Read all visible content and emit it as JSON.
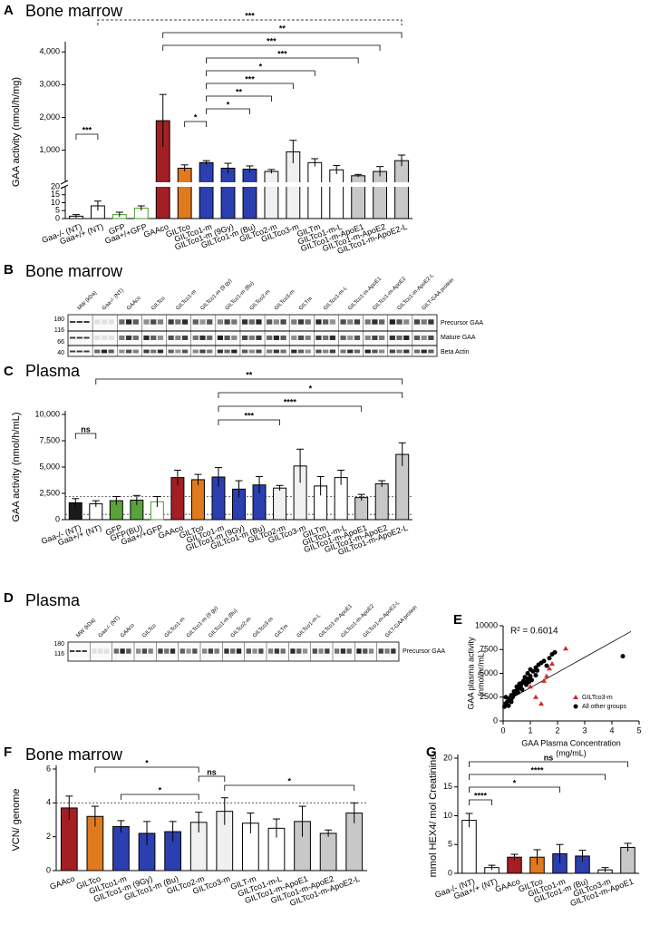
{
  "chart_data": [
    {
      "panel": "A",
      "type": "bar",
      "title": "Bone marrow",
      "y_label": "GAA activity (nmol/h/mg)",
      "categories": [
        "Gaa-/- (NT)",
        "Gaa+/+ (NT)",
        "GFP",
        "Gaa+/+GFP",
        "GAAco",
        "GILTco",
        "GILTco1-m",
        "GILTco1-m (9Gy)",
        "GILTco1-m (Bu)",
        "GILTco2-m",
        "GILTco3-m",
        "GILTm",
        "GILTco1-m-L",
        "GILTco1-m-ApoE1",
        "GILTco1-m-ApoE2",
        "GILTco1-m-ApoE2-L"
      ],
      "values": [
        1.5,
        8,
        2.5,
        6.5,
        1900,
        450,
        620,
        450,
        420,
        350,
        950,
        620,
        400,
        220,
        350,
        680
      ],
      "errors": [
        1,
        3,
        1.5,
        1.5,
        800,
        100,
        60,
        150,
        100,
        60,
        350,
        120,
        130,
        40,
        150,
        170
      ],
      "colors": [
        "#ffffff",
        "#ffffff",
        "#ffffff",
        "#ffffff",
        "#a31f23",
        "#e07a1f",
        "#2b3fb0",
        "#2b3fb0",
        "#2b3fb0",
        "#f0f0f0",
        "#f0f0f0",
        "#ffffff",
        "#ffffff",
        "#c8c8c8",
        "#c8c8c8",
        "#c8c8c8"
      ],
      "edgecolors": [
        "#000000",
        "#000000",
        "#4a9a2a",
        "#4a9a2a",
        "#000000",
        "#000000",
        "#000000",
        "#000000",
        "#000000",
        "#000000",
        "#000000",
        "#000000",
        "#000000",
        "#000000",
        "#000000",
        "#000000"
      ],
      "ylim": [
        0,
        4200
      ],
      "axis_break": 20,
      "yticks": [
        0,
        5,
        10,
        15,
        20,
        {
          "value": 1000,
          "label": "1,000"
        },
        {
          "value": 2000,
          "label": "2,000"
        },
        {
          "value": 3000,
          "label": "3,000"
        },
        {
          "value": 4000,
          "label": "4,000"
        }
      ],
      "annotations": [
        {
          "text": "***",
          "from": "Gaa+/+ (NT)",
          "to": "GILTco1-m-ApoE2-L",
          "dashed": true
        },
        {
          "text": "**",
          "from": "GAAco",
          "to": "GILTco1-m-ApoE2-L"
        },
        {
          "text": "***",
          "from": "GAAco",
          "to": "GILTco1-m-ApoE2"
        },
        {
          "text": "***",
          "from": "GILTco1-m",
          "to": "GILTco1-m-ApoE1"
        },
        {
          "text": "*",
          "from": "GILTco1-m",
          "to": "GILTm"
        },
        {
          "text": "***",
          "from": "GILTco1-m",
          "to": "GILTco3-m"
        },
        {
          "text": "**",
          "from": "GILTco1-m",
          "to": "GILTco2-m"
        },
        {
          "text": "*",
          "from": "GILTco1-m",
          "to": "GILTco1-m (Bu)"
        },
        {
          "text": "*",
          "from": "GILTco",
          "to": "GILTco1-m"
        },
        {
          "text": "***",
          "from": "Gaa-/- (NT)",
          "to": "Gaa+/+ (NT)"
        }
      ]
    },
    {
      "panel": "C",
      "type": "bar",
      "title": "Plasma",
      "y_label": "GAA activity (nmol/h/mL)",
      "categories": [
        "Gaa-/- (NT)",
        "Gaa+/+ (NT)",
        "GFP",
        "GFP(BU)",
        "Gaa+/+GFP",
        "GAAco",
        "GILTco",
        "GILTco1-m",
        "GILTco1-m (9Gy)",
        "GILTco1-m (Bu)",
        "GILTco2-m",
        "GILTco3-m",
        "GILTm",
        "GILTco1-m-L",
        "GILTco1-m-ApoE1",
        "GILTco1-m-ApoE2",
        "GILTco1-m-ApoE2-L"
      ],
      "values": [
        1600,
        1500,
        1800,
        1850,
        1700,
        4000,
        3800,
        4050,
        2900,
        3300,
        3000,
        5100,
        3200,
        4000,
        2100,
        3400,
        6200
      ],
      "errors": [
        400,
        300,
        400,
        450,
        500,
        700,
        500,
        900,
        800,
        800,
        250,
        1600,
        900,
        700,
        300,
        300,
        1100
      ],
      "colors": [
        "#1a1a1a",
        "#ffffff",
        "#5aa33a",
        "#5aa33a",
        "#ffffff",
        "#a31f23",
        "#e07a1f",
        "#2b3fb0",
        "#2b3fb0",
        "#2b3fb0",
        "#f0f0f0",
        "#f0f0f0",
        "#ffffff",
        "#ffffff",
        "#c8c8c8",
        "#c8c8c8",
        "#c8c8c8"
      ],
      "edgecolors": [
        "#000000",
        "#000000",
        "#000000",
        "#000000",
        "#4a9a2a",
        "#000000",
        "#000000",
        "#000000",
        "#000000",
        "#000000",
        "#000000",
        "#000000",
        "#000000",
        "#000000",
        "#000000",
        "#000000",
        "#000000"
      ],
      "ylim": [
        0,
        10000
      ],
      "yticks": [
        0,
        {
          "value": 2500,
          "label": "2,500"
        },
        {
          "value": 5000,
          "label": "5,000"
        },
        {
          "value": 7500,
          "label": "7,500"
        },
        {
          "value": 10000,
          "label": "10,000"
        }
      ],
      "hlines": [
        2200,
        500
      ],
      "annotations": [
        {
          "text": "**",
          "from": "Gaa+/+ (NT)",
          "to": "GILTco1-m-ApoE2-L"
        },
        {
          "text": "*",
          "from": "GILTco1-m",
          "to": "GILTco1-m-ApoE2-L"
        },
        {
          "text": "****",
          "from": "GILTco1-m",
          "to": "GILTco1-m-ApoE1"
        },
        {
          "text": "***",
          "from": "GILTco1-m",
          "to": "GILTco2-m"
        },
        {
          "text": "ns",
          "from": "Gaa-/- (NT)",
          "to": "Gaa+/+ (NT)"
        }
      ]
    },
    {
      "panel": "E",
      "type": "scatter",
      "x_label": [
        "GAA Plasma Concentration",
        "(mg/mL)"
      ],
      "y_label": [
        "GAA plasma activity",
        "(nmol/hr/mL)"
      ],
      "annotation": "R² = 0.6014",
      "series": [
        {
          "name": "GILTco3-m",
          "color": "#d62728",
          "marker": "triangle",
          "x": [
            1.2,
            1.4,
            1.5,
            1.6,
            1.7,
            2.3,
            1.8,
            1.0
          ],
          "values": [
            2500,
            1800,
            4200,
            4700,
            5500,
            7600,
            6000,
            3600
          ]
        },
        {
          "name": "All other groups",
          "color": "#000000",
          "marker": "circle",
          "x": [
            0.1,
            0.15,
            0.2,
            0.2,
            0.25,
            0.3,
            0.3,
            0.35,
            0.4,
            0.4,
            0.45,
            0.5,
            0.5,
            0.55,
            0.6,
            0.6,
            0.65,
            0.7,
            0.7,
            0.75,
            0.8,
            0.8,
            0.85,
            0.9,
            0.9,
            1.0,
            1.0,
            1.05,
            1.1,
            1.2,
            1.2,
            1.3,
            1.4,
            1.5,
            1.6,
            1.7,
            1.8,
            1.9,
            4.4,
            0.05,
            0.1,
            0.3,
            0.55,
            0.95,
            1.25
          ],
          "values": [
            1800,
            2000,
            2200,
            1600,
            2400,
            2300,
            2700,
            2500,
            2800,
            3100,
            2900,
            3200,
            3600,
            3400,
            3500,
            3900,
            3700,
            4000,
            3300,
            4200,
            4100,
            4600,
            3800,
            4400,
            5000,
            4700,
            5400,
            4300,
            5200,
            5600,
            4800,
            5900,
            6100,
            6300,
            5800,
            6600,
            7000,
            7200,
            6800,
            1500,
            2500,
            2000,
            3000,
            4100,
            5300
          ]
        }
      ],
      "trendline": {
        "x": [
          0,
          4.7
        ],
        "y": [
          1900,
          9400
        ]
      },
      "xlim": [
        0,
        5
      ],
      "xticks": [
        0,
        1,
        2,
        3,
        4,
        5
      ],
      "ylim": [
        0,
        10000
      ],
      "yticks": [
        0,
        2500,
        5000,
        7500,
        10000
      ],
      "legend": "lower-right"
    },
    {
      "panel": "F",
      "type": "bar",
      "title": "Bone marrow",
      "y_label": "VCN/ genome",
      "categories": [
        "GAAco",
        "GILTco",
        "GILTco1-m",
        "GILTco1-m (9Gy)",
        "GILTco1-m (Bu)",
        "GILTco2-m",
        "GILTco3-m",
        "GILT-m",
        "GILTco1-m-L",
        "GILTco1-m-ApoE1",
        "GILTco1-m-ApoE2",
        "GILTco1-m-ApoE2-L"
      ],
      "values": [
        3.7,
        3.2,
        2.6,
        2.2,
        2.3,
        2.85,
        3.5,
        2.8,
        2.5,
        2.9,
        2.2,
        3.4
      ],
      "errors": [
        0.7,
        0.6,
        0.35,
        0.7,
        0.6,
        0.6,
        0.8,
        0.6,
        0.55,
        0.9,
        0.2,
        0.6
      ],
      "colors": [
        "#a31f23",
        "#e07a1f",
        "#2b3fb0",
        "#2b3fb0",
        "#2b3fb0",
        "#f0f0f0",
        "#f0f0f0",
        "#ffffff",
        "#ffffff",
        "#c8c8c8",
        "#c8c8c8",
        "#c8c8c8"
      ],
      "edgecolors": [
        "#000000",
        "#000000",
        "#000000",
        "#000000",
        "#000000",
        "#000000",
        "#000000",
        "#000000",
        "#000000",
        "#000000",
        "#000000",
        "#000000"
      ],
      "ylim": [
        0,
        6
      ],
      "yticks": [
        0,
        2,
        4,
        6
      ],
      "hlines": [
        4
      ],
      "annotations": [
        {
          "text": "*",
          "from": "GILTco",
          "to": "GILTco2-m"
        },
        {
          "text": "ns",
          "from": "GILTco2-m",
          "to": "GILTco3-m"
        },
        {
          "text": "*",
          "from": "GILTco3-m",
          "to": "GILTco1-m-ApoE2-L"
        },
        {
          "text": "*",
          "from": "GILTco1-m",
          "to": "GILTco2-m"
        }
      ]
    },
    {
      "panel": "G",
      "type": "bar",
      "y_label": "mmol HEX4/ mol Creatinine",
      "categories": [
        "Gaa-/- (NT)",
        "Gaa+/+ (NT)",
        "GAAco",
        "GILTco",
        "GILTco1-m",
        "GILTco1-m (Bu)",
        "GILTco3-m",
        "GILTco1-m-ApoE1"
      ],
      "values": [
        9.2,
        1.0,
        2.8,
        2.8,
        3.4,
        3.0,
        0.6,
        4.5
      ],
      "errors": [
        1.2,
        0.4,
        0.5,
        1.3,
        1.6,
        1.0,
        0.4,
        0.7
      ],
      "colors": [
        "#ffffff",
        "#ffffff",
        "#a31f23",
        "#e07a1f",
        "#2b3fb0",
        "#2b3fb0",
        "#f0f0f0",
        "#c8c8c8"
      ],
      "edgecolors": [
        "#000000",
        "#000000",
        "#000000",
        "#000000",
        "#000000",
        "#000000",
        "#000000",
        "#000000"
      ],
      "ylim": [
        0,
        20
      ],
      "yticks": [
        0,
        5,
        10,
        15,
        20
      ],
      "annotations": [
        {
          "text": "ns",
          "from": "Gaa-/- (NT)",
          "to": "GILTco1-m-ApoE1"
        },
        {
          "text": "****",
          "from": "Gaa-/- (NT)",
          "to": "GILTco3-m"
        },
        {
          "text": "*",
          "from": "Gaa-/- (NT)",
          "to": "GILTco1-m"
        },
        {
          "text": "****",
          "from": "Gaa-/- (NT)",
          "to": "Gaa+/+ (NT)"
        }
      ]
    }
  ],
  "blots": [
    {
      "panel": "B",
      "title": "Bone marrow",
      "lanes": [
        "MW (kDa)",
        "Gaa-/- (NT)",
        "GAAco",
        "GILTco",
        "GILTco1-m",
        "GILTco1-m (9 gy)",
        "GILTco1-m (Bu)",
        "GILTco2-m",
        "GILTco3-m",
        "GILTm",
        "GILTco1-m-L",
        "GILTco1-m-ApoE1",
        "GILTco1-m-ApoE2",
        "GILTco1-m-ApoE2-L",
        "GILT-GAA protein"
      ],
      "mw": [
        180,
        116,
        66,
        40
      ],
      "bands": [
        "Precursor GAA",
        "Mature GAA",
        "Beta Actin"
      ]
    },
    {
      "panel": "D",
      "title": "Plasma",
      "lanes": [
        "MW (kDa)",
        "Gaa-/- (NT)",
        "GAAco",
        "GILTco",
        "GILTco1-m",
        "GILTco1-m (9 gy)",
        "GILTco1-m (Bu)",
        "GILTco2-m",
        "GILTco3-m",
        "GILTm",
        "GILTco1-m-L",
        "GILTco1-m-ApoE1",
        "GILTco1-m-ApoE2",
        "GILTco1-m-ApoE2-L",
        "GILT-GAA protein"
      ],
      "mw": [
        180,
        116
      ],
      "bands": [
        "Precursor GAA"
      ]
    }
  ]
}
